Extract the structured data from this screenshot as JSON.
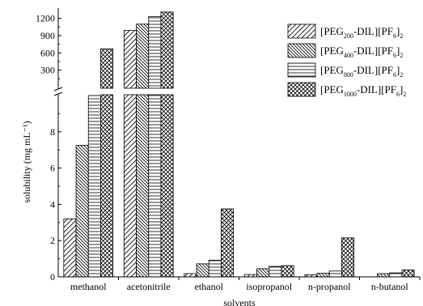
{
  "chart_data": {
    "type": "bar",
    "categories": [
      "methanol",
      "acetonitrile",
      "ethanol",
      "isopropanol",
      "n-propanol",
      "n-butanol"
    ],
    "xlabel": "solvents",
    "ylabel": "solubility (mg mL⁻¹)",
    "axis_break": true,
    "lower_axis": {
      "ylim": [
        0,
        10
      ],
      "ticks": [
        0,
        2,
        4,
        6,
        8
      ]
    },
    "upper_axis": {
      "ylim": [
        0,
        1350
      ],
      "ticks": [
        300,
        600,
        900,
        1200
      ]
    },
    "legend_position": "top-right",
    "series": [
      {
        "legend": {
          "pre": "[PEG",
          "sub": "200",
          "mid": "-DIL][PF",
          "sub2": "6",
          "post": "]",
          "sub3": "2"
        },
        "pattern": "diag-right",
        "values": [
          3.2,
          990,
          0.18,
          0.13,
          0.12,
          0.0
        ]
      },
      {
        "legend": {
          "pre": "[PEG",
          "sub": "400",
          "mid": "-DIL][PF",
          "sub2": "6",
          "post": "]",
          "sub3": "2"
        },
        "pattern": "diag-left",
        "values": [
          7.25,
          1100,
          0.72,
          0.45,
          0.2,
          0.18
        ]
      },
      {
        "legend": {
          "pre": "[PEG",
          "sub": "800",
          "mid": "-DIL][PF",
          "sub2": "6",
          "post": "]",
          "sub3": "2"
        },
        "pattern": "horizontal",
        "values": [
          10.0,
          1230,
          0.92,
          0.58,
          0.32,
          0.22
        ]
      },
      {
        "legend": {
          "pre": "[PEG",
          "sub": "1000",
          "mid": "-DIL][PF",
          "sub2": "6",
          "post": "]",
          "sub3": "2"
        },
        "pattern": "crosshatch",
        "values": [
          670,
          1310,
          3.75,
          0.62,
          2.15,
          0.38
        ]
      }
    ]
  }
}
